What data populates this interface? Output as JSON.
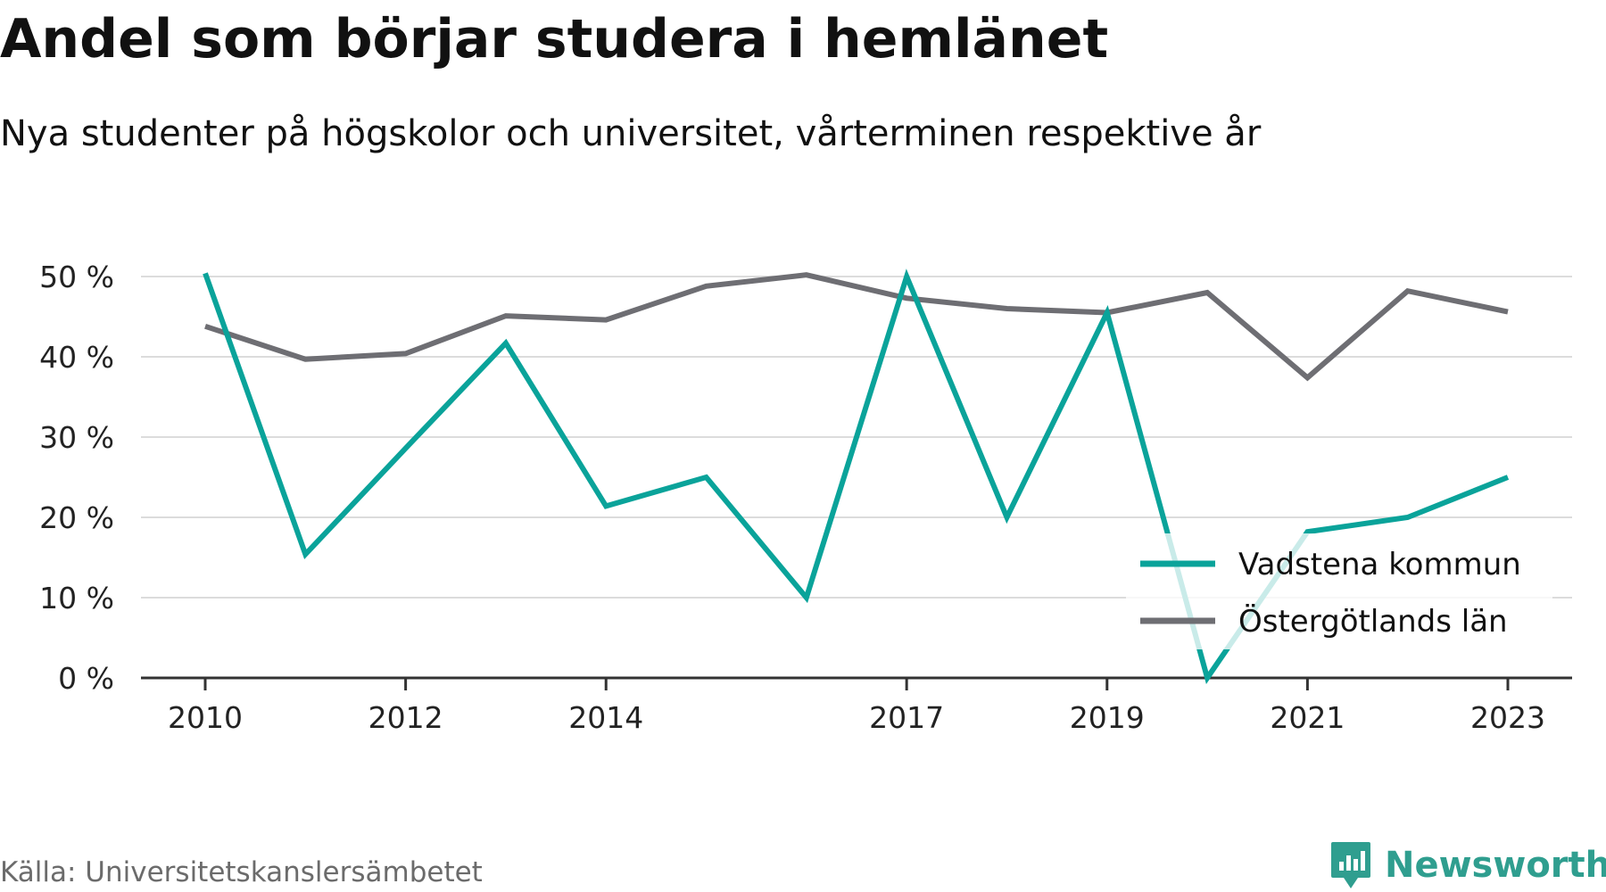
{
  "header": {
    "title": "Andel som börjar studera i hemlänet",
    "subtitle": "Nya studenter på högskolor och universitet, vårterminen respektive år"
  },
  "footer": {
    "source": "Källa: Universitetskanslersämbetet",
    "brand": "Newsworthy"
  },
  "colors": {
    "series_primary": "#0aa39a",
    "series_secondary": "#6e6e73",
    "gridline": "#dcdcdc",
    "axis": "#333333",
    "brand": "#2f9e8f"
  },
  "chart_data": {
    "type": "line",
    "x": [
      2010,
      2011,
      2012,
      2013,
      2014,
      2015,
      2016,
      2017,
      2018,
      2019,
      2020,
      2021,
      2022,
      2023
    ],
    "x_tick_labels": [
      "2010",
      "2012",
      "2014",
      "2017",
      "2019",
      "2021",
      "2023"
    ],
    "x_ticks": [
      2010,
      2012,
      2014,
      2017,
      2019,
      2021,
      2023
    ],
    "y_ticks": [
      0,
      10,
      20,
      30,
      40,
      50
    ],
    "y_tick_labels": [
      "0 %",
      "10 %",
      "20 %",
      "30 %",
      "40 %",
      "50 %"
    ],
    "ylim": [
      0,
      50
    ],
    "grid": true,
    "legend_position": "bottom-right",
    "series": [
      {
        "name": "Vadstena kommun",
        "values": [
          50.4,
          15.4,
          28.6,
          41.7,
          21.4,
          25.0,
          10.0,
          50.0,
          20.0,
          45.5,
          0.0,
          18.2,
          20.0,
          25.0
        ]
      },
      {
        "name": "Östergötlands län",
        "values": [
          43.8,
          39.7,
          40.4,
          45.1,
          44.6,
          48.8,
          50.2,
          47.3,
          46.0,
          45.5,
          48.0,
          37.4,
          48.2,
          45.6
        ]
      }
    ]
  }
}
